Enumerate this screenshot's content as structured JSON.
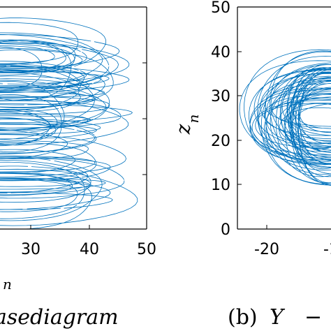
{
  "chart_data": [
    {
      "type": "line",
      "panel": "left",
      "xticks": [
        "30",
        "40",
        "50"
      ],
      "xlabel_fragment": "n",
      "caption_fragment": "asediagram",
      "xlim_visible": [
        26,
        50
      ],
      "color": "#0072BD",
      "series_shape": "phase-portrait trajectory (dense loops)"
    },
    {
      "type": "line",
      "panel": "right",
      "yticks": [
        "0",
        "10",
        "20",
        "30",
        "40",
        "50"
      ],
      "xticks": [
        "-20",
        "-1"
      ],
      "ylabel": "z",
      "ylabel_sub": "n",
      "ylim": [
        0,
        50
      ],
      "caption_prefix": "(b)",
      "caption_var": "Y",
      "caption_dash": "−",
      "color": "#0072BD",
      "series_shape": "phase-portrait trajectory (dense loops)"
    }
  ]
}
